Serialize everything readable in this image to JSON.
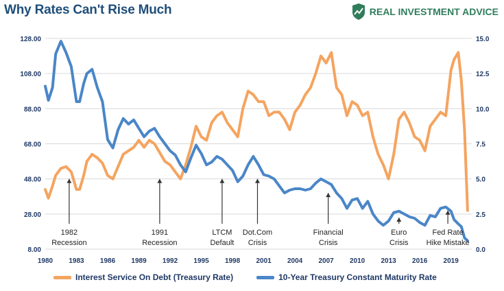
{
  "title": "Why Rates Can't Rise Much",
  "brand": {
    "name": "REAL INVESTMENT ADVICE",
    "logo_icon": "shield-chart-icon",
    "color": "#2f7d5b"
  },
  "chart_data": {
    "type": "line",
    "title": "Why Rates Can't Rise Much",
    "x_ticks": [
      "1980",
      "1983",
      "1986",
      "1989",
      "1992",
      "1995",
      "1998",
      "2001",
      "2004",
      "2007",
      "2010",
      "2013",
      "2016",
      "2019"
    ],
    "xlim": [
      1980,
      2021
    ],
    "y_left": {
      "ylim": [
        8,
        128
      ],
      "ticks": [
        "8.00",
        "28.00",
        "48.00",
        "68.00",
        "88.00",
        "108.00",
        "128.00"
      ]
    },
    "y_right": {
      "ylim": [
        0,
        15
      ],
      "ticks": [
        "0.0",
        "2.5",
        "5.0",
        "7.5",
        "10.0",
        "12.5",
        "15.0"
      ]
    },
    "grid": true,
    "legend_position": "bottom",
    "series": [
      {
        "name": "Interest Service On Debt (Treasury Rate)",
        "axis": "left",
        "color": "#f4a460",
        "x": [
          1980,
          1980.3,
          1980.7,
          1981,
          1981.5,
          1982,
          1982.5,
          1983,
          1983.3,
          1983.7,
          1984,
          1984.5,
          1985,
          1985.5,
          1986,
          1986.5,
          1987,
          1987.5,
          1988,
          1988.5,
          1989,
          1989.5,
          1990,
          1990.5,
          1991,
          1991.5,
          1992,
          1992.5,
          1993,
          1993.5,
          1994,
          1994.5,
          1995,
          1995.5,
          1996,
          1996.5,
          1997,
          1997.5,
          1998,
          1998.5,
          1999,
          1999.5,
          2000,
          2000.5,
          2001,
          2001.5,
          2002,
          2002.5,
          2003,
          2003.5,
          2004,
          2004.5,
          2005,
          2005.5,
          2006,
          2006.5,
          2007,
          2007.5,
          2008,
          2008.5,
          2009,
          2009.5,
          2010,
          2010.5,
          2011,
          2011.5,
          2012,
          2012.5,
          2013,
          2013.5,
          2014,
          2014.5,
          2015,
          2015.5,
          2016,
          2016.5,
          2017,
          2017.5,
          2018,
          2018.5,
          2019,
          2019.3,
          2019.7,
          2020,
          2020.3,
          2020.6
        ],
        "values": [
          42,
          37,
          44,
          50,
          54,
          55,
          52,
          42,
          42,
          50,
          58,
          62,
          60,
          57,
          50,
          48,
          55,
          62,
          64,
          66,
          70,
          66,
          70,
          68,
          63,
          58,
          56,
          52,
          48,
          56,
          66,
          78,
          72,
          70,
          80,
          84,
          86,
          80,
          76,
          72,
          88,
          98,
          96,
          92,
          92,
          84,
          86,
          86,
          82,
          76,
          86,
          90,
          96,
          100,
          108,
          118,
          114,
          120,
          100,
          96,
          84,
          92,
          90,
          84,
          86,
          72,
          62,
          56,
          48,
          62,
          82,
          86,
          80,
          72,
          70,
          64,
          78,
          82,
          86,
          84,
          110,
          116,
          120,
          104,
          76,
          30
        ]
      },
      {
        "name": "10-Year Treasury Constant Maturity Rate",
        "axis": "right",
        "color": "#4a86c8",
        "x": [
          1980,
          1980.3,
          1980.7,
          1981,
          1981.5,
          1982,
          1982.5,
          1983,
          1983.3,
          1983.7,
          1984,
          1984.5,
          1985,
          1985.5,
          1986,
          1986.5,
          1987,
          1987.5,
          1988,
          1988.5,
          1989,
          1989.5,
          1990,
          1990.5,
          1991,
          1991.5,
          1992,
          1992.5,
          1993,
          1993.5,
          1994,
          1994.5,
          1995,
          1995.5,
          1996,
          1996.5,
          1997,
          1997.5,
          1998,
          1998.5,
          1999,
          1999.5,
          2000,
          2000.5,
          2001,
          2001.5,
          2002,
          2002.5,
          2003,
          2003.5,
          2004,
          2004.5,
          2005,
          2005.5,
          2006,
          2006.5,
          2007,
          2007.5,
          2008,
          2008.5,
          2009,
          2009.5,
          2010,
          2010.5,
          2011,
          2011.5,
          2012,
          2012.5,
          2013,
          2013.5,
          2014,
          2014.5,
          2015,
          2015.5,
          2016,
          2016.5,
          2017,
          2017.5,
          2018,
          2018.5,
          2019,
          2019.3,
          2019.7,
          2020,
          2020.3,
          2020.6
        ],
        "values": [
          11.6,
          10.6,
          11.5,
          13.9,
          14.8,
          14.0,
          13.0,
          10.5,
          10.5,
          11.8,
          12.5,
          12.8,
          11.5,
          10.5,
          7.8,
          7.2,
          8.5,
          9.3,
          8.9,
          9.2,
          8.6,
          8.0,
          8.4,
          8.6,
          8.0,
          7.5,
          7.0,
          6.7,
          6.0,
          5.5,
          6.5,
          7.4,
          6.8,
          6.0,
          6.2,
          6.6,
          6.4,
          6.0,
          5.6,
          4.8,
          5.2,
          6.0,
          6.6,
          6.0,
          5.3,
          5.2,
          5.0,
          4.5,
          4.0,
          4.2,
          4.3,
          4.3,
          4.2,
          4.3,
          4.7,
          5.0,
          4.8,
          4.6,
          4.0,
          3.6,
          2.9,
          3.5,
          3.6,
          2.9,
          3.4,
          2.5,
          2.0,
          1.7,
          2.0,
          2.6,
          2.7,
          2.5,
          2.3,
          2.2,
          1.9,
          1.7,
          2.4,
          2.3,
          2.9,
          3.0,
          2.7,
          2.1,
          1.8,
          1.6,
          0.8,
          0.6
        ]
      }
    ],
    "annotations": [
      {
        "lines": [
          "1982",
          "Recession"
        ],
        "x": 1982.3,
        "y_left": 48
      },
      {
        "lines": [
          "1991",
          "Recession"
        ],
        "x": 1991.0,
        "y_left": 48
      },
      {
        "lines": [
          "LTCM",
          "Default"
        ],
        "x": 1997.0,
        "y_left": 48
      },
      {
        "lines": [
          "Dot.Com",
          "Crisis"
        ],
        "x": 2000.4,
        "y_left": 48
      },
      {
        "lines": [
          "Financial",
          "Crisis"
        ],
        "x": 2007.2,
        "y_left": 40
      },
      {
        "lines": [
          "Euro",
          "Crisis"
        ],
        "x": 2014.0,
        "y_left": 26
      },
      {
        "lines": [
          "Fed Rate",
          "Hike Mistake"
        ],
        "x": 2018.7,
        "y_left": 30
      }
    ]
  }
}
